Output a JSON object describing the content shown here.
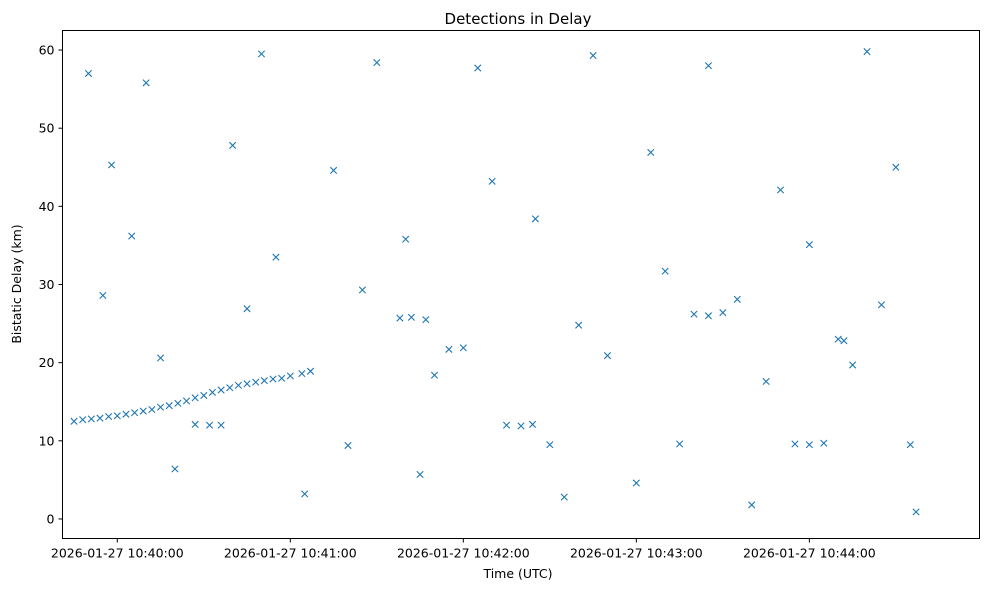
{
  "chart_data": {
    "type": "scatter",
    "title": "Detections in Delay",
    "xlabel": "Time (UTC)",
    "ylabel": "Bistatic Delay (km)",
    "x_type": "datetime",
    "xlim": [
      "2026-01-27 10:39:41",
      "2026-01-27 10:44:59"
    ],
    "ylim": [
      -2.5,
      62.5
    ],
    "x_ticks": [
      {
        "value": "2026-01-27 10:40:00",
        "label": "2026-01-27 10:40:00"
      },
      {
        "value": "2026-01-27 10:41:00",
        "label": "2026-01-27 10:41:00"
      },
      {
        "value": "2026-01-27 10:42:00",
        "label": "2026-01-27 10:42:00"
      },
      {
        "value": "2026-01-27 10:43:00",
        "label": "2026-01-27 10:43:00"
      },
      {
        "value": "2026-01-27 10:44:00",
        "label": "2026-01-27 10:44:00"
      }
    ],
    "y_ticks": [
      0,
      10,
      20,
      30,
      40,
      50,
      60
    ],
    "grid": false,
    "legend": "none",
    "marker": "x",
    "color": "#1f77b4",
    "series": [
      {
        "x_range": [
          "2026-01-27 10:39:43",
          "2026-01-27 10:44:41"
        ],
        "points": [
          [
            "2026-01-27 10:39:45",
            12.5
          ],
          [
            "2026-01-27 10:39:48",
            12.7
          ],
          [
            "2026-01-27 10:39:51",
            12.8
          ],
          [
            "2026-01-27 10:39:54",
            12.9
          ],
          [
            "2026-01-27 10:39:57",
            13.1
          ],
          [
            "2026-01-27 10:40:00",
            13.2
          ],
          [
            "2026-01-27 10:40:03",
            13.4
          ],
          [
            "2026-01-27 10:40:06",
            13.6
          ],
          [
            "2026-01-27 10:40:09",
            13.8
          ],
          [
            "2026-01-27 10:40:12",
            14.0
          ],
          [
            "2026-01-27 10:40:15",
            14.3
          ],
          [
            "2026-01-27 10:40:18",
            14.5
          ],
          [
            "2026-01-27 10:40:21",
            14.8
          ],
          [
            "2026-01-27 10:40:24",
            15.1
          ],
          [
            "2026-01-27 10:40:27",
            15.5
          ],
          [
            "2026-01-27 10:40:30",
            15.8
          ],
          [
            "2026-01-27 10:40:33",
            16.2
          ],
          [
            "2026-01-27 10:40:36",
            16.5
          ],
          [
            "2026-01-27 10:40:39",
            16.8
          ],
          [
            "2026-01-27 10:40:42",
            17.1
          ],
          [
            "2026-01-27 10:40:45",
            17.3
          ],
          [
            "2026-01-27 10:40:48",
            17.5
          ],
          [
            "2026-01-27 10:40:51",
            17.7
          ],
          [
            "2026-01-27 10:40:54",
            17.9
          ],
          [
            "2026-01-27 10:40:57",
            18.0
          ],
          [
            "2026-01-27 10:41:00",
            18.3
          ],
          [
            "2026-01-27 10:41:04",
            18.6
          ],
          [
            "2026-01-27 10:41:07",
            18.9
          ],
          [
            "2026-01-27 10:40:27",
            12.1
          ],
          [
            "2026-01-27 10:40:32",
            12.0
          ],
          [
            "2026-01-27 10:40:36",
            12.0
          ],
          [
            "2026-01-27 10:41:38",
            25.7
          ],
          [
            "2026-01-27 10:41:42",
            25.8
          ],
          [
            "2026-01-27 10:41:47",
            25.5
          ],
          [
            "2026-01-27 10:42:15",
            12.0
          ],
          [
            "2026-01-27 10:42:20",
            11.9
          ],
          [
            "2026-01-27 10:42:24",
            12.1
          ],
          [
            "2026-01-27 10:43:20",
            26.2
          ],
          [
            "2026-01-27 10:43:25",
            26.0
          ],
          [
            "2026-01-27 10:43:30",
            26.4
          ],
          [
            "2026-01-27 10:43:55",
            9.6
          ],
          [
            "2026-01-27 10:44:00",
            9.5
          ],
          [
            "2026-01-27 10:44:05",
            9.7
          ],
          [
            "2026-01-27 10:44:10",
            23.0
          ],
          [
            "2026-01-27 10:44:12",
            22.8
          ],
          [
            "2026-01-27 10:41:55",
            21.7
          ],
          [
            "2026-01-27 10:42:00",
            21.9
          ],
          [
            "2026-01-27 10:41:20",
            9.4
          ],
          [
            "2026-01-27 10:42:30",
            9.5
          ],
          [
            "2026-01-27 10:43:15",
            9.6
          ],
          [
            "2026-01-27 10:44:35",
            9.5
          ],
          [
            "2026-01-27 10:39:50",
            57.0
          ],
          [
            "2026-01-27 10:40:10",
            55.8
          ],
          [
            "2026-01-27 10:40:50",
            59.5
          ],
          [
            "2026-01-27 10:41:30",
            58.4
          ],
          [
            "2026-01-27 10:42:05",
            57.7
          ],
          [
            "2026-01-27 10:42:45",
            59.3
          ],
          [
            "2026-01-27 10:43:25",
            58.0
          ],
          [
            "2026-01-27 10:44:20",
            59.8
          ],
          [
            "2026-01-27 10:39:58",
            45.3
          ],
          [
            "2026-01-27 10:40:40",
            47.8
          ],
          [
            "2026-01-27 10:41:15",
            44.6
          ],
          [
            "2026-01-27 10:42:10",
            43.2
          ],
          [
            "2026-01-27 10:43:05",
            46.9
          ],
          [
            "2026-01-27 10:43:50",
            42.1
          ],
          [
            "2026-01-27 10:44:30",
            45.0
          ],
          [
            "2026-01-27 10:40:05",
            36.2
          ],
          [
            "2026-01-27 10:40:55",
            33.5
          ],
          [
            "2026-01-27 10:41:40",
            35.8
          ],
          [
            "2026-01-27 10:42:25",
            38.4
          ],
          [
            "2026-01-27 10:43:10",
            31.7
          ],
          [
            "2026-01-27 10:44:00",
            35.1
          ],
          [
            "2026-01-27 10:39:55",
            28.6
          ],
          [
            "2026-01-27 10:40:45",
            26.9
          ],
          [
            "2026-01-27 10:41:25",
            29.3
          ],
          [
            "2026-01-27 10:42:40",
            24.8
          ],
          [
            "2026-01-27 10:43:35",
            28.1
          ],
          [
            "2026-01-27 10:44:25",
            27.4
          ],
          [
            "2026-01-27 10:40:15",
            20.6
          ],
          [
            "2026-01-27 10:41:50",
            18.4
          ],
          [
            "2026-01-27 10:42:50",
            20.9
          ],
          [
            "2026-01-27 10:43:45",
            17.6
          ],
          [
            "2026-01-27 10:44:15",
            19.7
          ],
          [
            "2026-01-27 10:40:20",
            6.4
          ],
          [
            "2026-01-27 10:41:05",
            3.2
          ],
          [
            "2026-01-27 10:41:45",
            5.7
          ],
          [
            "2026-01-27 10:42:35",
            2.8
          ],
          [
            "2026-01-27 10:43:00",
            4.6
          ],
          [
            "2026-01-27 10:43:40",
            1.8
          ],
          [
            "2026-01-27 10:44:37",
            0.9
          ]
        ]
      }
    ]
  }
}
